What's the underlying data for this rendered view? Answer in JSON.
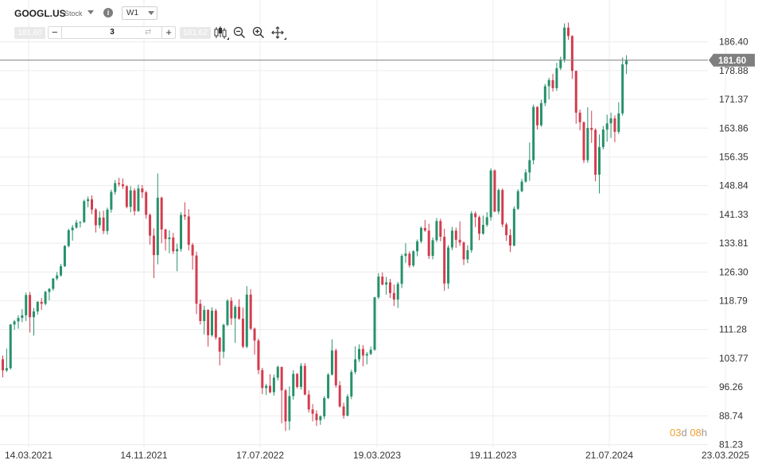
{
  "header": {
    "symbol": "GOOGL.US",
    "instrument_type": "Stock",
    "timeframe": "W1",
    "sell_price": "181.60",
    "buy_price": "181.62",
    "volume": "3"
  },
  "countdown": {
    "days": "03",
    "days_unit": "d",
    "hours": "08",
    "hours_unit": "h"
  },
  "icons": [
    "chevron-down-icon",
    "info-icon",
    "minus-icon",
    "plus-icon",
    "swap-icon",
    "candlestick-icon",
    "zoom-out-icon",
    "zoom-in-icon",
    "crosshair-icon"
  ],
  "colors": {
    "up": "#26916a",
    "down": "#d33d4f",
    "grid": "#ececec",
    "price_line": "#7f7f7f",
    "price_tag": "#7f7f7f",
    "countdown": "#f0a030"
  },
  "chart_data": {
    "type": "candlestick",
    "timeframe": "W1",
    "current_price": 181.6,
    "ylim": [
      81.23,
      193.9
    ],
    "yticks": [
      "186.40",
      "178.88",
      "171.37",
      "163.86",
      "156.35",
      "148.84",
      "141.33",
      "133.81",
      "126.30",
      "118.79",
      "111.28",
      "103.77",
      "96.26",
      "88.74",
      "81.23"
    ],
    "xticks": [
      "14.03.2021",
      "14.11.2021",
      "17.07.2022",
      "19.03.2023",
      "19.11.2023",
      "21.07.2024",
      "23.03.2025"
    ],
    "grid": true,
    "candles": [
      [
        103.5,
        104.5,
        98.8,
        100.6
      ],
      [
        100.6,
        106.3,
        100.2,
        101.2
      ],
      [
        101.2,
        112.7,
        100.8,
        112.6
      ],
      [
        112.6,
        113.8,
        111.2,
        113.4
      ],
      [
        113.4,
        115.0,
        111.5,
        114.3
      ],
      [
        114.3,
        116.6,
        113.2,
        115.0
      ],
      [
        115.0,
        120.9,
        113.5,
        120.3
      ],
      [
        120.3,
        121.1,
        110.5,
        114.5
      ],
      [
        114.5,
        116.9,
        109.7,
        116.0
      ],
      [
        116.0,
        118.7,
        115.2,
        118.5
      ],
      [
        118.5,
        119.5,
        116.4,
        118.0
      ],
      [
        118.0,
        121.4,
        117.6,
        121.1
      ],
      [
        121.1,
        122.1,
        118.9,
        121.9
      ],
      [
        121.9,
        124.7,
        121.4,
        124.6
      ],
      [
        124.6,
        126.3,
        124.1,
        125.4
      ],
      [
        125.4,
        128.4,
        125.1,
        127.8
      ],
      [
        127.8,
        133.3,
        127.6,
        133.1
      ],
      [
        133.1,
        137.6,
        132.7,
        137.2
      ],
      [
        137.2,
        138.6,
        134.5,
        137.9
      ],
      [
        137.9,
        139.9,
        137.6,
        139.2
      ],
      [
        139.2,
        139.6,
        137.9,
        139.3
      ],
      [
        139.3,
        145.2,
        139.1,
        144.8
      ],
      [
        144.8,
        146.0,
        143.2,
        145.3
      ],
      [
        145.3,
        146.3,
        141.4,
        142.6
      ],
      [
        142.6,
        143.0,
        136.6,
        138.5
      ],
      [
        138.5,
        142.1,
        137.7,
        140.5
      ],
      [
        140.5,
        142.3,
        136.2,
        137.0
      ],
      [
        137.0,
        143.1,
        136.1,
        142.6
      ],
      [
        142.6,
        147.8,
        141.8,
        147.2
      ],
      [
        147.2,
        150.3,
        146.5,
        149.5
      ],
      [
        149.5,
        150.9,
        148.6,
        149.2
      ],
      [
        149.2,
        150.7,
        148.0,
        148.7
      ],
      [
        148.7,
        149.0,
        142.9,
        143.3
      ],
      [
        143.3,
        148.7,
        141.9,
        147.6
      ],
      [
        147.6,
        148.2,
        141.1,
        142.2
      ],
      [
        142.2,
        149.1,
        142.0,
        148.1
      ],
      [
        148.1,
        149.0,
        145.6,
        147.1
      ],
      [
        147.1,
        147.5,
        140.2,
        141.2
      ],
      [
        141.2,
        141.6,
        133.4,
        135.8
      ],
      [
        135.8,
        137.7,
        124.7,
        130.7
      ],
      [
        130.7,
        152.0,
        128.3,
        145.7
      ],
      [
        145.7,
        146.0,
        133.8,
        137.4
      ],
      [
        137.4,
        137.6,
        131.9,
        134.9
      ],
      [
        134.9,
        137.2,
        131.2,
        135.3
      ],
      [
        135.3,
        136.5,
        131.0,
        131.7
      ],
      [
        131.7,
        133.7,
        126.5,
        132.3
      ],
      [
        132.3,
        141.9,
        131.6,
        141.2
      ],
      [
        141.2,
        144.5,
        139.9,
        140.8
      ],
      [
        140.8,
        142.7,
        131.9,
        133.4
      ],
      [
        133.4,
        133.9,
        126.9,
        130.6
      ],
      [
        130.6,
        131.6,
        115.3,
        118.0
      ],
      [
        118.0,
        119.1,
        112.6,
        113.5
      ],
      [
        113.5,
        117.5,
        110.0,
        116.4
      ],
      [
        116.4,
        116.6,
        106.8,
        109.8
      ],
      [
        109.8,
        117.1,
        109.4,
        116.2
      ],
      [
        116.2,
        116.7,
        108.6,
        109.2
      ],
      [
        109.2,
        109.3,
        101.9,
        105.5
      ],
      [
        105.5,
        112.8,
        103.8,
        112.5
      ],
      [
        112.5,
        119.2,
        112.1,
        118.8
      ],
      [
        118.8,
        119.7,
        112.5,
        114.2
      ],
      [
        114.2,
        117.7,
        107.8,
        117.2
      ],
      [
        117.2,
        119.2,
        113.8,
        114.1
      ],
      [
        114.1,
        117.0,
        106.4,
        106.8
      ],
      [
        106.8,
        122.6,
        106.4,
        120.4
      ],
      [
        120.4,
        121.8,
        111.1,
        111.5
      ],
      [
        111.5,
        111.8,
        104.7,
        108.4
      ],
      [
        108.4,
        108.9,
        99.6,
        100.7
      ],
      [
        100.7,
        101.3,
        94.4,
        96.0
      ],
      [
        96.0,
        97.1,
        94.2,
        96.6
      ],
      [
        96.6,
        99.6,
        94.6,
        94.9
      ],
      [
        94.9,
        99.5,
        94.0,
        98.7
      ],
      [
        98.7,
        101.9,
        98.0,
        101.5
      ],
      [
        101.5,
        101.6,
        86.8,
        95.4
      ],
      [
        95.4,
        95.8,
        84.8,
        87.3
      ],
      [
        87.3,
        96.4,
        85.0,
        93.9
      ],
      [
        93.9,
        100.7,
        93.0,
        99.7
      ],
      [
        99.7,
        99.9,
        95.9,
        96.3
      ],
      [
        96.3,
        102.5,
        95.6,
        101.8
      ],
      [
        101.8,
        102.5,
        94.1,
        94.3
      ],
      [
        94.3,
        95.4,
        89.6,
        90.4
      ],
      [
        90.4,
        91.8,
        87.3,
        89.3
      ],
      [
        89.3,
        90.2,
        86.1,
        87.6
      ],
      [
        87.6,
        88.9,
        86.4,
        88.6
      ],
      [
        88.6,
        93.9,
        87.9,
        93.4
      ],
      [
        93.4,
        99.9,
        93.1,
        99.5
      ],
      [
        99.5,
        108.7,
        99.3,
        105.8
      ],
      [
        105.8,
        106.3,
        96.1,
        96.7
      ],
      [
        96.7,
        97.8,
        90.9,
        91.2
      ],
      [
        91.2,
        92.2,
        88.0,
        88.8
      ],
      [
        88.8,
        94.4,
        88.6,
        93.8
      ],
      [
        93.8,
        100.8,
        93.1,
        100.2
      ],
      [
        100.2,
        106.9,
        99.6,
        103.5
      ],
      [
        103.5,
        107.4,
        102.8,
        106.2
      ],
      [
        106.2,
        107.2,
        101.7,
        104.5
      ],
      [
        104.5,
        105.4,
        102.2,
        104.9
      ],
      [
        104.9,
        106.8,
        104.6,
        106.0
      ],
      [
        106.0,
        119.8,
        105.7,
        119.7
      ],
      [
        119.7,
        126.0,
        119.2,
        125.1
      ],
      [
        125.1,
        126.2,
        122.8,
        123.0
      ],
      [
        123.0,
        125.0,
        120.4,
        123.6
      ],
      [
        123.6,
        124.5,
        119.5,
        120.8
      ],
      [
        120.8,
        123.0,
        117.4,
        119.1
      ],
      [
        119.1,
        123.7,
        116.9,
        123.2
      ],
      [
        123.2,
        131.0,
        122.1,
        130.5
      ],
      [
        130.5,
        133.8,
        128.7,
        131.1
      ],
      [
        131.1,
        131.7,
        127.4,
        128.0
      ],
      [
        128.0,
        132.0,
        127.6,
        131.7
      ],
      [
        131.7,
        134.8,
        130.4,
        134.3
      ],
      [
        134.3,
        138.2,
        133.8,
        137.8
      ],
      [
        137.8,
        139.9,
        136.8,
        137.1
      ],
      [
        137.1,
        138.9,
        129.7,
        130.5
      ],
      [
        130.5,
        135.3,
        129.6,
        134.6
      ],
      [
        134.6,
        140.4,
        134.1,
        139.6
      ],
      [
        139.6,
        140.2,
        134.3,
        135.5
      ],
      [
        135.5,
        137.6,
        121.4,
        123.3
      ],
      [
        123.3,
        133.3,
        121.9,
        132.7
      ],
      [
        132.7,
        138.1,
        132.0,
        137.1
      ],
      [
        137.1,
        137.9,
        132.6,
        134.7
      ],
      [
        134.7,
        139.5,
        133.1,
        134.0
      ],
      [
        134.0,
        134.3,
        128.1,
        129.6
      ],
      [
        129.6,
        133.3,
        128.6,
        132.0
      ],
      [
        132.0,
        142.2,
        131.3,
        141.6
      ],
      [
        141.6,
        142.1,
        138.0,
        140.6
      ],
      [
        140.6,
        141.0,
        134.6,
        136.3
      ],
      [
        136.3,
        141.0,
        136.0,
        138.6
      ],
      [
        138.6,
        141.9,
        138.1,
        140.6
      ],
      [
        140.6,
        153.4,
        139.7,
        152.8
      ],
      [
        152.8,
        153.1,
        141.9,
        142.1
      ],
      [
        142.1,
        148.1,
        141.4,
        147.7
      ],
      [
        147.7,
        148.1,
        138.0,
        138.7
      ],
      [
        138.7,
        139.2,
        134.4,
        135.9
      ],
      [
        135.9,
        137.5,
        131.5,
        133.2
      ],
      [
        133.2,
        143.4,
        133.0,
        142.8
      ],
      [
        142.8,
        147.9,
        142.5,
        147.4
      ],
      [
        147.4,
        150.6,
        147.1,
        149.9
      ],
      [
        149.9,
        153.1,
        149.6,
        152.3
      ],
      [
        152.3,
        160.1,
        150.1,
        155.5
      ],
      [
        155.5,
        170.0,
        154.4,
        169.4
      ],
      [
        169.4,
        169.6,
        163.5,
        164.6
      ],
      [
        164.6,
        171.3,
        164.2,
        170.4
      ],
      [
        170.4,
        175.4,
        169.6,
        174.8
      ],
      [
        174.8,
        177.0,
        171.4,
        176.4
      ],
      [
        176.4,
        178.0,
        173.4,
        174.3
      ],
      [
        174.3,
        180.9,
        173.6,
        179.5
      ],
      [
        179.5,
        182.5,
        179.0,
        181.8
      ],
      [
        181.8,
        191.2,
        181.0,
        190.1
      ],
      [
        190.1,
        191.4,
        186.9,
        187.9
      ],
      [
        187.9,
        188.1,
        176.7,
        178.8
      ],
      [
        178.8,
        178.9,
        165.0,
        167.9
      ],
      [
        167.9,
        168.7,
        163.3,
        165.4
      ],
      [
        165.4,
        165.6,
        154.7,
        155.5
      ],
      [
        155.5,
        169.3,
        154.8,
        163.9
      ],
      [
        163.9,
        168.4,
        160.0,
        163.4
      ],
      [
        163.4,
        163.8,
        150.0,
        151.7
      ],
      [
        151.7,
        162.2,
        146.8,
        158.9
      ],
      [
        158.9,
        164.4,
        158.3,
        163.5
      ],
      [
        163.5,
        167.4,
        160.3,
        165.1
      ],
      [
        165.1,
        167.9,
        161.3,
        166.4
      ],
      [
        166.4,
        167.2,
        160.2,
        162.9
      ],
      [
        162.9,
        170.6,
        162.3,
        167.7
      ],
      [
        167.7,
        182.3,
        167.1,
        180.5
      ],
      [
        180.5,
        182.9,
        178.0,
        181.6
      ]
    ]
  }
}
